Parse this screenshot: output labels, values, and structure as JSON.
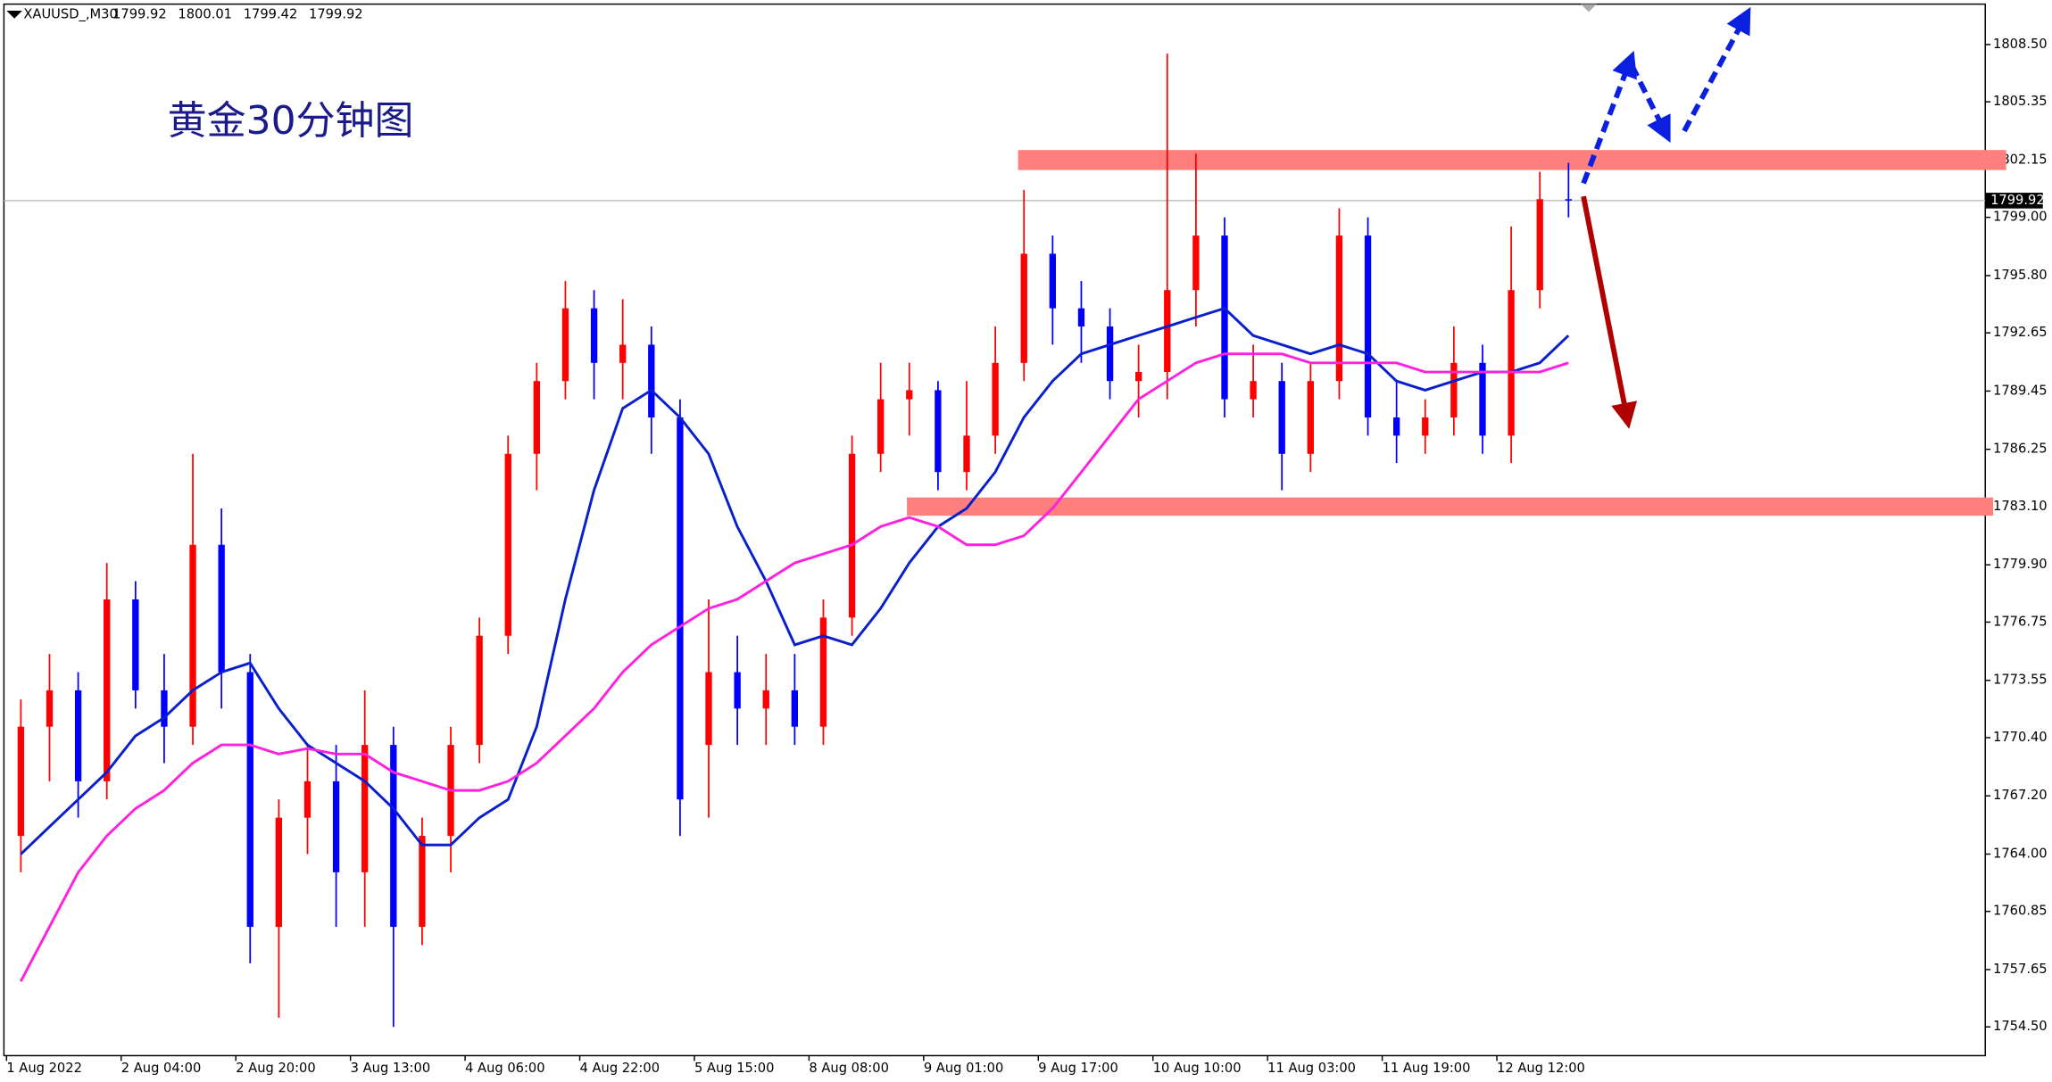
{
  "chart_data": {
    "type": "candlestick",
    "title": "黄金30分钟图",
    "header": {
      "symbol": "XAUUSD_,M30",
      "values": [
        1799.92,
        1800.01,
        1799.42,
        1799.92
      ]
    },
    "categories": [
      "1 Aug 2022",
      null,
      null,
      null,
      "2 Aug 04:00",
      null,
      null,
      null,
      "2 Aug 20:00",
      null,
      null,
      null,
      "3 Aug 13:00",
      null,
      null,
      null,
      "4 Aug 06:00",
      null,
      null,
      null,
      "4 Aug 22:00",
      null,
      null,
      null,
      "5 Aug 15:00",
      null,
      null,
      null,
      "8 Aug 08:00",
      null,
      null,
      null,
      "9 Aug 01:00",
      null,
      null,
      null,
      "9 Aug 17:00",
      null,
      null,
      null,
      "10 Aug 10:00",
      null,
      null,
      null,
      "11 Aug 03:00",
      null,
      null,
      null,
      "11 Aug 19:00",
      null,
      null,
      null,
      "12 Aug 12:00",
      null,
      null
    ],
    "open": [
      1765,
      1771,
      1773,
      1768,
      1778,
      1773,
      1771,
      1781,
      1774,
      1760,
      1766,
      1768,
      1763,
      1770,
      1760,
      1765,
      1770,
      1776,
      1786,
      1790,
      1794,
      1791,
      1792,
      1788,
      1770,
      1774,
      1772,
      1773,
      1771,
      1777,
      1786,
      1789,
      1789.5,
      1785,
      1787,
      1791,
      1797,
      1794,
      1793,
      1790,
      1790.5,
      1795,
      1798,
      1789,
      1790,
      1786,
      1790,
      1798,
      1788,
      1787,
      1788,
      1791,
      1787,
      1795,
      1800
    ],
    "high": [
      1772.5,
      1775,
      1774,
      1780,
      1779,
      1775,
      1786,
      1783,
      1775,
      1767,
      1770,
      1770,
      1773,
      1771,
      1766,
      1771,
      1777,
      1787,
      1791,
      1795.5,
      1795,
      1794.5,
      1793,
      1789,
      1778,
      1776,
      1775,
      1775,
      1778,
      1787,
      1791,
      1791,
      1790,
      1790,
      1793,
      1800.5,
      1798,
      1795.5,
      1794,
      1792,
      1808,
      1802.5,
      1799,
      1792,
      1791,
      1791,
      1799.5,
      1799,
      1790,
      1789,
      1793,
      1792,
      1798.5,
      1801.5,
      1802
    ],
    "low": [
      1763,
      1768,
      1766,
      1767,
      1772,
      1769,
      1770,
      1772,
      1758,
      1755,
      1764,
      1760,
      1760,
      1754.5,
      1759,
      1763,
      1769,
      1775,
      1784,
      1789,
      1789,
      1789,
      1786,
      1765,
      1766,
      1770,
      1770,
      1770,
      1770,
      1776,
      1785,
      1787,
      1784,
      1784,
      1786,
      1790,
      1792,
      1791,
      1789,
      1788,
      1789,
      1793,
      1788,
      1788,
      1784,
      1785,
      1789,
      1787,
      1785.5,
      1786,
      1787,
      1786,
      1785.5,
      1794,
      1799
    ],
    "close": [
      1771,
      1773,
      1768,
      1778,
      1773,
      1771,
      1781,
      1774,
      1760,
      1766,
      1768,
      1763,
      1770,
      1760,
      1765,
      1770,
      1776,
      1786,
      1790,
      1794,
      1791,
      1792,
      1788,
      1767,
      1774,
      1772,
      1773,
      1771,
      1777,
      1786,
      1789,
      1789.5,
      1785,
      1787,
      1791,
      1797,
      1794,
      1793,
      1790,
      1790.5,
      1795,
      1798,
      1789,
      1790,
      1786,
      1790,
      1798,
      1788,
      1787,
      1788,
      1791,
      1787,
      1795,
      1800,
      1799.92
    ],
    "up_color": "#ff0000",
    "down_color": "#0000ff",
    "series": [
      {
        "color": "#0a1fcc",
        "values": [
          1764,
          1765.5,
          1767,
          1768.5,
          1770.5,
          1771.5,
          1773,
          1774,
          1774.5,
          1772,
          1770,
          1769,
          1768,
          1766.5,
          1764.5,
          1764.5,
          1766,
          1767,
          1771,
          1778,
          1784,
          1788.5,
          1789.5,
          1788,
          1786,
          1782,
          1779,
          1775.5,
          1776,
          1775.5,
          1777.5,
          1780,
          1782,
          1783,
          1785,
          1788,
          1790,
          1791.5,
          1792,
          1792.5,
          1793,
          1793.5,
          1794,
          1792.5,
          1792,
          1791.5,
          1792,
          1791.5,
          1790,
          1789.5,
          1790,
          1790.5,
          1790.5,
          1791,
          1792.5
        ]
      },
      {
        "color": "#ff20e0",
        "values": [
          1757,
          1760,
          1763,
          1765,
          1766.5,
          1767.5,
          1769,
          1770,
          1770,
          1769.5,
          1769.8,
          1769.5,
          1769.5,
          1768.5,
          1768,
          1767.5,
          1767.5,
          1768,
          1769,
          1770.5,
          1772,
          1774,
          1775.5,
          1776.5,
          1777.5,
          1778,
          1779,
          1780,
          1780.5,
          1781,
          1782,
          1782.5,
          1782,
          1781,
          1781,
          1781.5,
          1783,
          1785,
          1787,
          1789,
          1790,
          1791,
          1791.5,
          1791.5,
          1791.5,
          1791,
          1791,
          1791,
          1791,
          1790.5,
          1790.5,
          1790.5,
          1790.5,
          1790.5,
          1791
        ]
      }
    ],
    "zones": [
      {
        "low": 1801.6,
        "high": 1802.7
      },
      {
        "low": 1782.6,
        "high": 1783.6
      }
    ],
    "last_price": 1799.92,
    "ylim": [
      1752.92,
      1810.72
    ],
    "yticks": [
      {
        "value": 1808.5,
        "label": "1808.50"
      },
      {
        "value": 1805.35,
        "label": "1805.35"
      },
      {
        "value": 1802.15,
        "label": "1802.15"
      },
      {
        "value": 1799,
        "label": "1799.00"
      },
      {
        "value": 1795.8,
        "label": "1795.80"
      },
      {
        "value": 1792.65,
        "label": "1792.65"
      },
      {
        "value": 1789.45,
        "label": "1789.45"
      },
      {
        "value": 1786.25,
        "label": "1786.25"
      },
      {
        "value": 1783.1,
        "label": "1783.10"
      },
      {
        "value": 1779.9,
        "label": "1779.90"
      },
      {
        "value": 1776.75,
        "label": "1776.75"
      },
      {
        "value": 1773.55,
        "label": "1773.55"
      },
      {
        "value": 1770.4,
        "label": "1770.40"
      },
      {
        "value": 1767.2,
        "label": "1767.20"
      },
      {
        "value": 1764,
        "label": "1764.00"
      },
      {
        "value": 1760.85,
        "label": "1760.85"
      },
      {
        "value": 1757.65,
        "label": "1757.65"
      },
      {
        "value": 1754.5,
        "label": "1754.50"
      }
    ]
  }
}
